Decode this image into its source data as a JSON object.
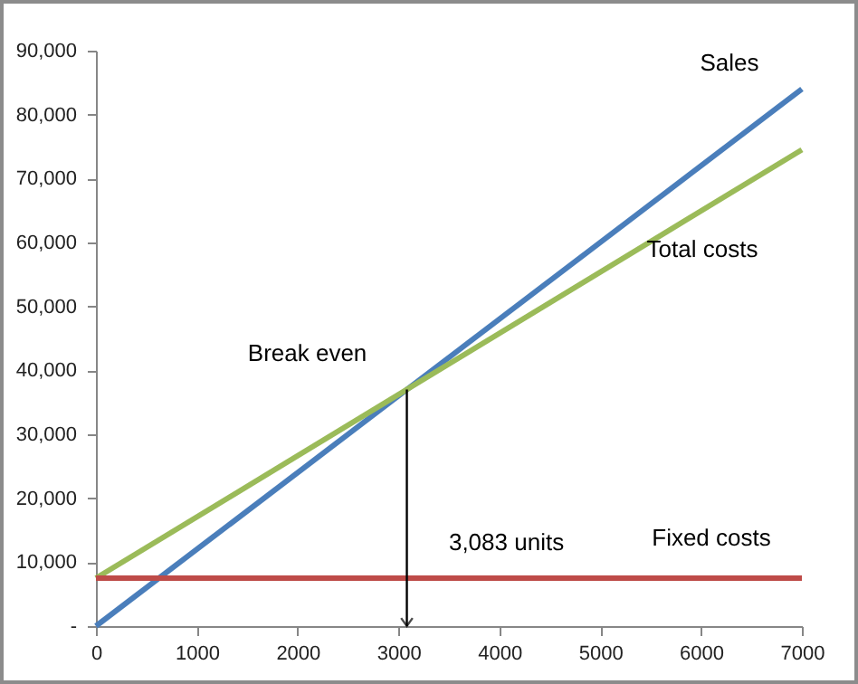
{
  "chart_data": {
    "type": "line",
    "x": [
      0,
      7000
    ],
    "series": [
      {
        "name": "Sales",
        "color": "#4a7ebb",
        "values": [
          0,
          84000
        ]
      },
      {
        "name": "Total costs",
        "color": "#9bbb59",
        "values": [
          7500,
          74500
        ]
      },
      {
        "name": "Fixed costs",
        "color": "#be4b48",
        "values": [
          7500,
          7500
        ]
      }
    ],
    "xlim": [
      0,
      7000
    ],
    "xticks": [
      0,
      1000,
      2000,
      3000,
      4000,
      5000,
      6000,
      7000
    ],
    "ylim": [
      0,
      90000
    ],
    "yticks": [
      {
        "value": 0,
        "label": "-"
      },
      {
        "value": 10000,
        "label": "10,000"
      },
      {
        "value": 20000,
        "label": "20,000"
      },
      {
        "value": 30000,
        "label": "30,000"
      },
      {
        "value": 40000,
        "label": "40,000"
      },
      {
        "value": 50000,
        "label": "50,000"
      },
      {
        "value": 60000,
        "label": "60,000"
      },
      {
        "value": 70000,
        "label": "70,000"
      },
      {
        "value": 80000,
        "label": "80,000"
      },
      {
        "value": 90000,
        "label": "90,000"
      }
    ],
    "annotations": [
      {
        "text": "Break even",
        "x": 3083,
        "y": 37000
      },
      "3,083 units"
    ],
    "grid": false,
    "legend": false,
    "marker": "none",
    "line_style": "solid"
  }
}
